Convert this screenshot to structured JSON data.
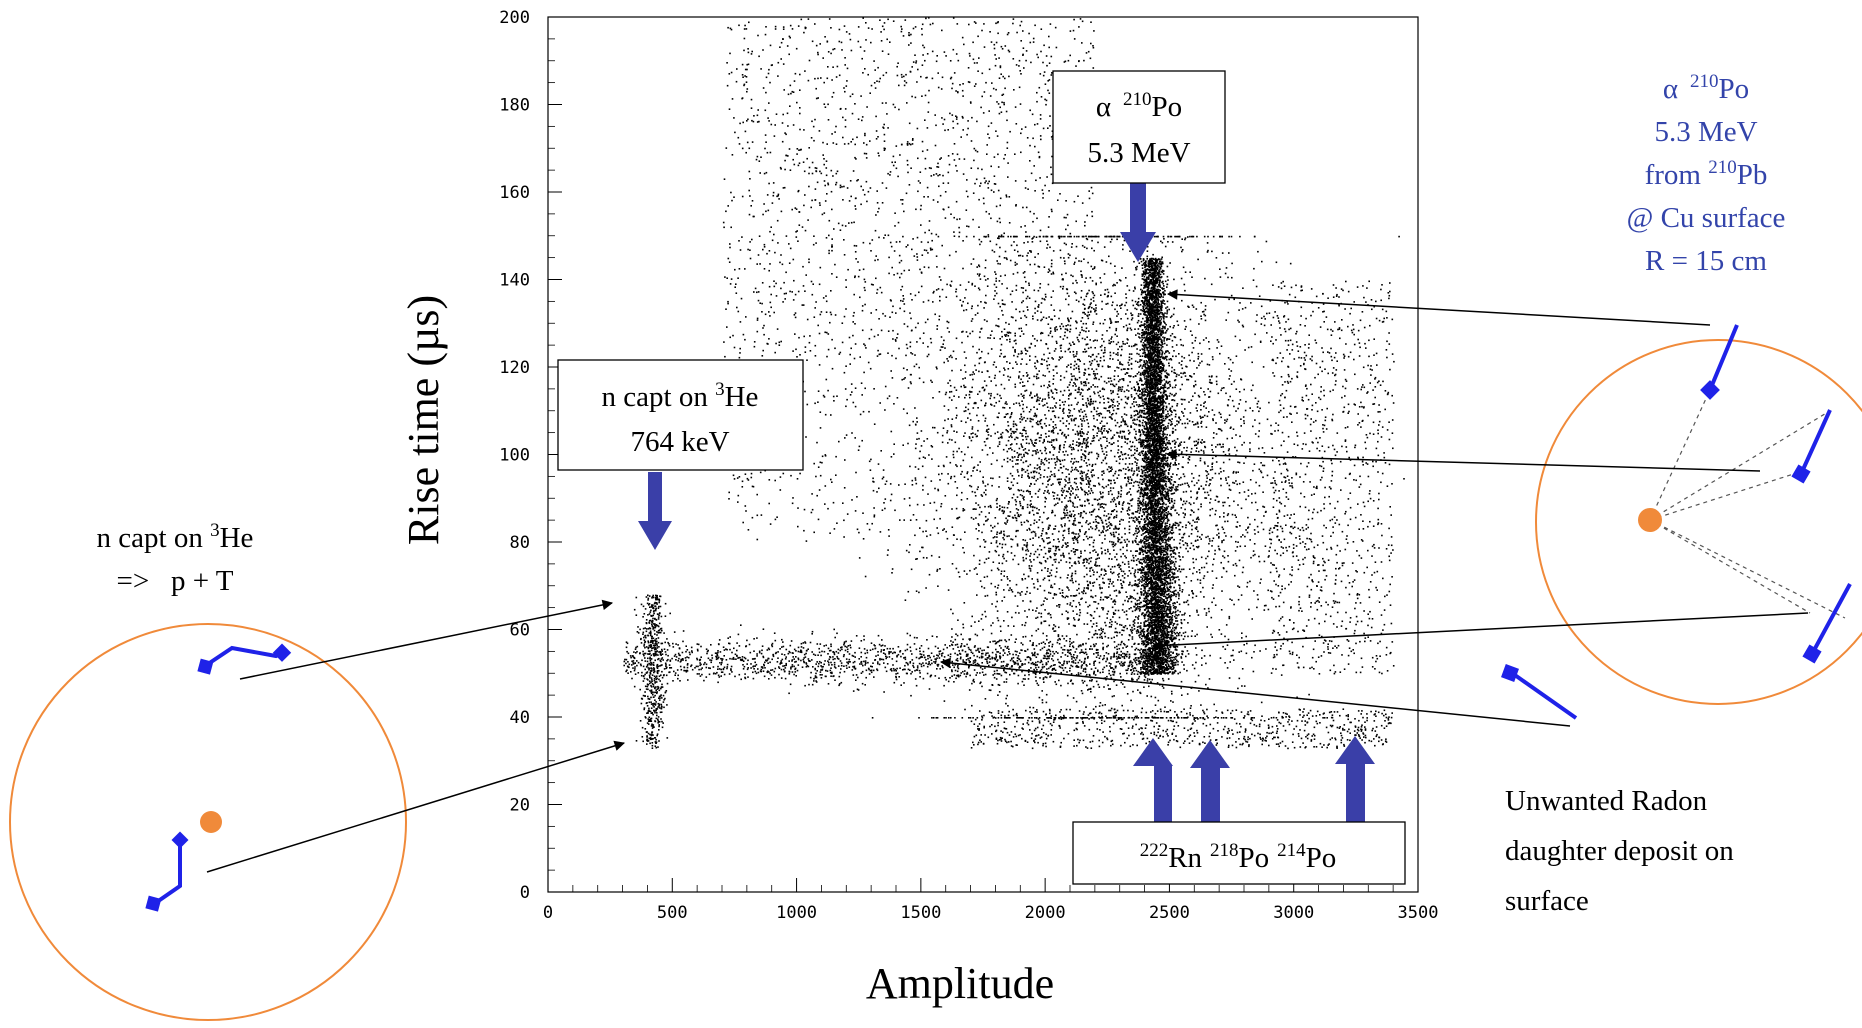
{
  "chart_data": {
    "type": "scatter",
    "title": "",
    "xlabel": "Amplitude",
    "ylabel": "Rise time (µs)",
    "xlim": [
      0,
      3500
    ],
    "ylim": [
      0,
      200
    ],
    "x_ticks": [
      0,
      500,
      1000,
      1500,
      2000,
      2500,
      3000,
      3500
    ],
    "y_ticks": [
      0,
      20,
      40,
      60,
      80,
      100,
      120,
      140,
      160,
      180,
      200
    ],
    "grid": false,
    "legend": "none",
    "marker_color": "#000000",
    "populations": [
      {
        "name": "n capture 764 keV vertical band",
        "x_center": 420,
        "y_range": [
          33,
          68
        ],
        "approx_points": 500
      },
      {
        "name": "horizontal band",
        "x_range": [
          300,
          2450
        ],
        "y_center": 53,
        "approx_points": 1600
      },
      {
        "name": "alpha 210Po 5.3 MeV vertical band",
        "x_center": 2450,
        "y_range": [
          50,
          145
        ],
        "approx_points": 6500
      },
      {
        "name": "broad cloud",
        "x_range": [
          1500,
          3000
        ],
        "y_range": [
          40,
          150
        ],
        "approx_points": 5500
      },
      {
        "name": "high rise-time cloud",
        "x_range": [
          700,
          2200
        ],
        "y_range": [
          80,
          200
        ],
        "approx_points": 2200
      },
      {
        "name": "low band",
        "x_range": [
          1700,
          3400
        ],
        "y_range": [
          33,
          42
        ],
        "approx_points": 700
      }
    ]
  },
  "annotations": {
    "alpha_box": {
      "line1": "α",
      "line1_iso": "210",
      "line1_elem": "Po",
      "line2": "5.3 MeV"
    },
    "ncapt_box": {
      "pre": "n capt on ",
      "iso": "3",
      "elem": "He",
      "line2": "764 keV"
    },
    "radon_box": {
      "iso1": "222",
      "el1": "Rn",
      "iso2": "218",
      "el2": "Po",
      "iso3": "214",
      "el3": "Po"
    },
    "alpha_side": {
      "line1": "α",
      "line1_iso": "210",
      "line1_elem": "Po",
      "line2": "5.3 MeV",
      "line3_pre": "from ",
      "line3_iso": "210",
      "line3_elem": "Pb",
      "line4": "@ Cu surface",
      "line5": "R = 15 cm"
    },
    "ncapt_side": {
      "pre": "n capt on ",
      "iso": "3",
      "elem": "He",
      "line2": "=>   p + T"
    },
    "radon_side": {
      "line1": "Unwanted Radon",
      "line2": "daughter deposit on",
      "line3": "surface"
    }
  },
  "colors": {
    "arrow_blue": "#3a3fa8",
    "track_blue": "#1f22e8",
    "circle_orange": "#f08a3a",
    "text_blue": "#3344aa"
  }
}
